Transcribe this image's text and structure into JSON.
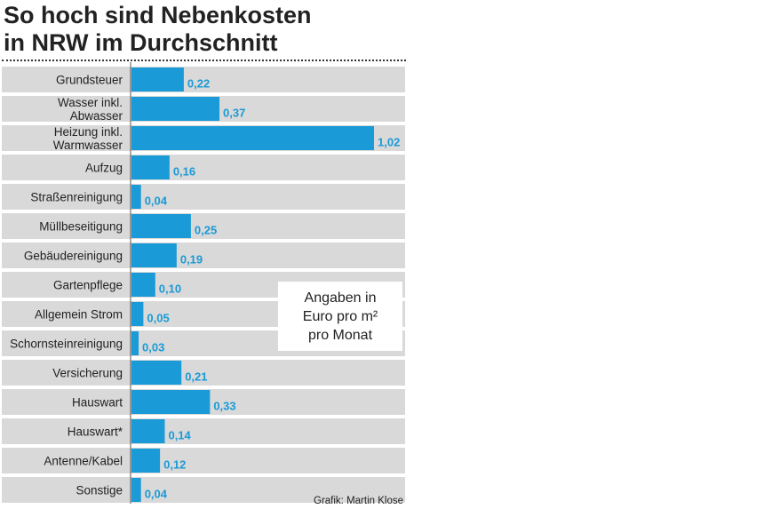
{
  "title_lines": [
    "So hoch sind Nebenkosten",
    "in NRW im Durchschnitt"
  ],
  "note_lines": [
    "Angaben in",
    "Euro pro m²",
    "pro Monat"
  ],
  "credit": "Grafik: Martin Klose",
  "colors": {
    "bar": "#1a9ad6",
    "row_bg": "#d9d9d9",
    "label": "#1a9ad6",
    "text": "#222222"
  },
  "chart_data": {
    "type": "bar",
    "orientation": "horizontal",
    "categories": [
      [
        "Grundsteuer"
      ],
      [
        "Wasser inkl.",
        "Abwasser"
      ],
      [
        "Heizung inkl.",
        "Warmwasser"
      ],
      [
        "Aufzug"
      ],
      [
        "Straßenreinigung"
      ],
      [
        "Müllbeseitigung"
      ],
      [
        "Gebäudereinigung"
      ],
      [
        "Gartenpflege"
      ],
      [
        "Allgemein Strom"
      ],
      [
        "Schornsteinreinigung"
      ],
      [
        "Versicherung"
      ],
      [
        "Hauswart"
      ],
      [
        "Hauswart*"
      ],
      [
        "Antenne/Kabel"
      ],
      [
        "Sonstige"
      ]
    ],
    "values": [
      0.22,
      0.37,
      1.02,
      0.16,
      0.04,
      0.25,
      0.19,
      0.1,
      0.05,
      0.03,
      0.21,
      0.33,
      0.14,
      0.12,
      0.04
    ],
    "value_labels": [
      "0,22",
      "0,37",
      "1,02",
      "0,16",
      "0,04",
      "0,25",
      "0,19",
      "0,10",
      "0,05",
      "0,03",
      "0,21",
      "0,33",
      "0,14",
      "0,12",
      "0,04"
    ],
    "xlim": [
      0,
      1.02
    ],
    "grid": false,
    "legend": "none"
  }
}
